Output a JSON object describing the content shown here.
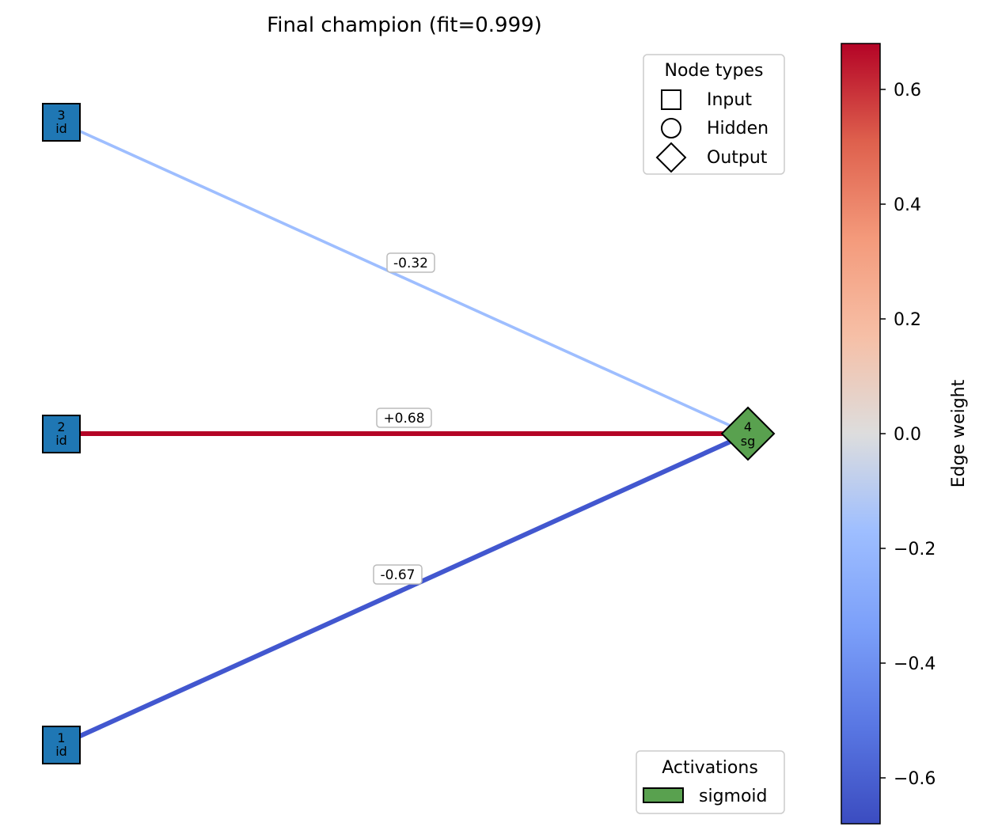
{
  "title": "Final champion (fit=0.999)",
  "nodes": [
    {
      "id": "3",
      "label": "3",
      "activation_abbr": "id",
      "type": "input"
    },
    {
      "id": "2",
      "label": "2",
      "activation_abbr": "id",
      "type": "input"
    },
    {
      "id": "1",
      "label": "1",
      "activation_abbr": "id",
      "type": "input"
    },
    {
      "id": "4",
      "label": "4",
      "activation_abbr": "sg",
      "type": "output",
      "activation": "sigmoid"
    }
  ],
  "edges": [
    {
      "from": "3",
      "to": "4",
      "weight": -0.32,
      "label": "-0.32"
    },
    {
      "from": "2",
      "to": "4",
      "weight": 0.68,
      "label": "+0.68"
    },
    {
      "from": "1",
      "to": "4",
      "weight": -0.67,
      "label": "-0.67"
    }
  ],
  "legend_node_types": {
    "title": "Node types",
    "items": [
      {
        "label": "Input",
        "shape": "square"
      },
      {
        "label": "Hidden",
        "shape": "circle"
      },
      {
        "label": "Output",
        "shape": "diamond"
      }
    ]
  },
  "legend_activations": {
    "title": "Activations",
    "items": [
      {
        "label": "sigmoid",
        "color": "#59a14f"
      }
    ]
  },
  "colorbar": {
    "label": "Edge weight",
    "min": -0.68,
    "max": 0.68,
    "colormap": "coolwarm",
    "ticks": [
      {
        "value": 0.6,
        "label": "0.6"
      },
      {
        "value": 0.4,
        "label": "0.4"
      },
      {
        "value": 0.2,
        "label": "0.2"
      },
      {
        "value": 0.0,
        "label": "0.0"
      },
      {
        "value": -0.2,
        "label": "−0.2"
      },
      {
        "value": -0.4,
        "label": "−0.4"
      },
      {
        "value": -0.6,
        "label": "−0.6"
      }
    ]
  },
  "colors": {
    "input_node": "#1f77b4",
    "output_node": "#59a14f",
    "node_border": "#000000"
  }
}
